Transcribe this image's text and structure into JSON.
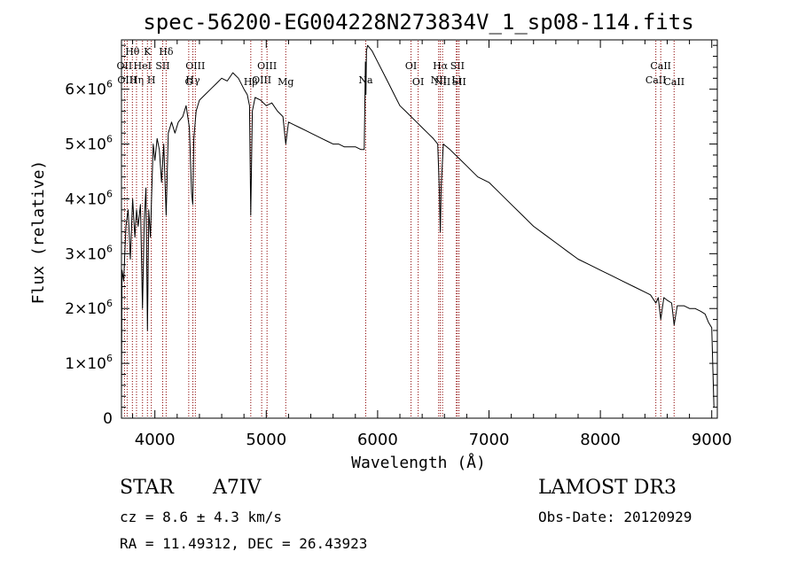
{
  "title": "spec-56200-EG004228N273834V_1_sp08-114.fits",
  "chart_data": {
    "type": "line",
    "title": "spec-56200-EG004228N273834V_1_sp08-114.fits",
    "xlabel": "Wavelength (Å)",
    "ylabel": "Flux (relative)",
    "xlim": [
      3700,
      9050
    ],
    "ylim": [
      0,
      6900000
    ],
    "x_ticks": [
      4000,
      5000,
      6000,
      7000,
      8000,
      9000
    ],
    "x_tick_labels": [
      "4000",
      "5000",
      "6000",
      "7000",
      "8000",
      "9000"
    ],
    "y_ticks": [
      0,
      1000000,
      2000000,
      3000000,
      4000000,
      5000000,
      6000000
    ],
    "y_tick_labels": [
      {
        "base": "0",
        "exp": ""
      },
      {
        "base": "1×10",
        "exp": "6"
      },
      {
        "base": "2×10",
        "exp": "6"
      },
      {
        "base": "3×10",
        "exp": "6"
      },
      {
        "base": "4×10",
        "exp": "6"
      },
      {
        "base": "5×10",
        "exp": "6"
      },
      {
        "base": "6×10",
        "exp": "6"
      }
    ],
    "series": [
      {
        "name": "spectrum",
        "x": [
          3700,
          3705,
          3720,
          3740,
          3760,
          3780,
          3800,
          3820,
          3835,
          3850,
          3870,
          3889,
          3905,
          3920,
          3933,
          3945,
          3960,
          3970,
          3985,
          4000,
          4020,
          4040,
          4060,
          4080,
          4101,
          4120,
          4150,
          4180,
          4210,
          4250,
          4280,
          4310,
          4330,
          4340,
          4350,
          4370,
          4400,
          4450,
          4500,
          4550,
          4600,
          4650,
          4700,
          4750,
          4800,
          4830,
          4850,
          4861,
          4875,
          4900,
          4950,
          5000,
          5050,
          5100,
          5150,
          5175,
          5200,
          5250,
          5300,
          5350,
          5400,
          5450,
          5500,
          5550,
          5600,
          5650,
          5700,
          5750,
          5800,
          5850,
          5880,
          5890,
          5895,
          5900,
          5910,
          5950,
          6000,
          6050,
          6100,
          6150,
          6200,
          6250,
          6300,
          6350,
          6400,
          6450,
          6500,
          6540,
          6555,
          6563,
          6570,
          6590,
          6650,
          6700,
          6750,
          6800,
          6900,
          7000,
          7100,
          7200,
          7300,
          7400,
          7500,
          7600,
          7700,
          7800,
          7900,
          8000,
          8100,
          8200,
          8300,
          8400,
          8450,
          8498,
          8520,
          8542,
          8570,
          8600,
          8640,
          8662,
          8690,
          8750,
          8800,
          8850,
          8900,
          8940,
          8970,
          9000,
          9020
        ],
        "y": [
          300000,
          2700000,
          2500000,
          3500000,
          3800000,
          2900000,
          4000000,
          3300000,
          3800000,
          3500000,
          3900000,
          2000000,
          3600000,
          4200000,
          1600000,
          3800000,
          3300000,
          4000000,
          5000000,
          4700000,
          5100000,
          4900000,
          4300000,
          5000000,
          3700000,
          5200000,
          5400000,
          5200000,
          5400000,
          5500000,
          5700000,
          5300000,
          4100000,
          3900000,
          5100000,
          5600000,
          5800000,
          5900000,
          6000000,
          6100000,
          6200000,
          6150000,
          6300000,
          6200000,
          6000000,
          5900000,
          5700000,
          3700000,
          5600000,
          5850000,
          5800000,
          5700000,
          5750000,
          5600000,
          5500000,
          5000000,
          5400000,
          5350000,
          5300000,
          5250000,
          5200000,
          5150000,
          5100000,
          5050000,
          5000000,
          5000000,
          4950000,
          4950000,
          4950000,
          4900000,
          4900000,
          6500000,
          5900000,
          6700000,
          6800000,
          6700000,
          6500000,
          6300000,
          6100000,
          5900000,
          5700000,
          5600000,
          5500000,
          5400000,
          5300000,
          5200000,
          5100000,
          5000000,
          4100000,
          3400000,
          4200000,
          5000000,
          4900000,
          4800000,
          4700000,
          4600000,
          4400000,
          4300000,
          4100000,
          3900000,
          3700000,
          3500000,
          3350000,
          3200000,
          3050000,
          2900000,
          2800000,
          2700000,
          2600000,
          2500000,
          2400000,
          2300000,
          2250000,
          2100000,
          2200000,
          1800000,
          2200000,
          2150000,
          2100000,
          1700000,
          2050000,
          2050000,
          2000000,
          2000000,
          1950000,
          1900000,
          1750000,
          1650000,
          200000
        ]
      }
    ],
    "line_color": "#000000",
    "marker_color": "#8b0000",
    "line_markers": [
      {
        "x": 3727,
        "label": "OII",
        "row": 1
      },
      {
        "x": 3751,
        "label": "OIII",
        "row": 2
      },
      {
        "x": 3798,
        "label": "Hθ",
        "row": 0
      },
      {
        "x": 3835,
        "label": "Hη",
        "row": 2
      },
      {
        "x": 3889,
        "label": "HeI",
        "row": 1
      },
      {
        "x": 3933,
        "label": "K",
        "row": 0
      },
      {
        "x": 3968,
        "label": "H",
        "row": 2
      },
      {
        "x": 4070,
        "label": "SII",
        "row": 1
      },
      {
        "x": 4101,
        "label": "Hδ",
        "row": 0
      },
      {
        "x": 4304,
        "label": "G",
        "row": 3
      },
      {
        "x": 4341,
        "label": "Hγ",
        "row": 2
      },
      {
        "x": 4363,
        "label": "OIII",
        "row": 1
      },
      {
        "x": 4861,
        "label": "Hβ",
        "row": 3
      },
      {
        "x": 4959,
        "label": "OIII",
        "row": 2
      },
      {
        "x": 5007,
        "label": "OIII",
        "row": 1
      },
      {
        "x": 5175,
        "label": "Mg",
        "row": 3
      },
      {
        "x": 5893,
        "label": "Na",
        "row": 2
      },
      {
        "x": 6300,
        "label": "OI",
        "row": 1
      },
      {
        "x": 6364,
        "label": "OI",
        "row": 3
      },
      {
        "x": 6548,
        "label": "NII",
        "row": 2
      },
      {
        "x": 6563,
        "label": "Hα",
        "row": 1
      },
      {
        "x": 6583,
        "label": "NII",
        "row": 3
      },
      {
        "x": 6707,
        "label": "Li",
        "row": 2
      },
      {
        "x": 6716,
        "label": "SII",
        "row": 1
      },
      {
        "x": 6731,
        "label": "SII",
        "row": 3
      },
      {
        "x": 8498,
        "label": "CaII",
        "row": 2
      },
      {
        "x": 8542,
        "label": "CaII",
        "row": 1
      },
      {
        "x": 8662,
        "label": "CaII",
        "row": 3
      }
    ]
  },
  "info": {
    "object_class": "STAR",
    "subclass": "A7IV",
    "redshift": "cz =   8.6 ± 4.3 km/s",
    "coords": "RA =  11.49312, DEC =  26.43923",
    "survey": "LAMOST DR3",
    "obs_date": "Obs-Date: 20120929"
  }
}
